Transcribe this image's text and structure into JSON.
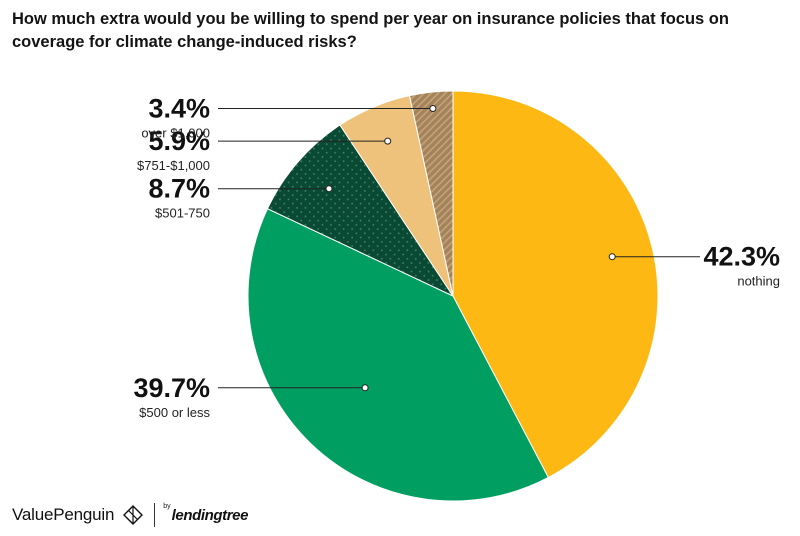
{
  "chart_data": {
    "type": "pie",
    "title": "How much extra would you be willing to spend per year on insurance policies that focus on coverage for climate change-induced risks?",
    "slices": [
      {
        "label": "nothing",
        "value": 42.3,
        "display": "42.3%",
        "color": "#FDB813",
        "pattern": "solid"
      },
      {
        "label": "$500 or less",
        "value": 39.7,
        "display": "39.7%",
        "color": "#009E60",
        "pattern": "solid"
      },
      {
        "label": "$501-750",
        "value": 8.7,
        "display": "8.7%",
        "color": "#0A4A34",
        "pattern": "dots"
      },
      {
        "label": "$751-$1,000",
        "value": 5.9,
        "display": "5.9%",
        "color": "#EEC27A",
        "pattern": "solid"
      },
      {
        "label": "over $1,000",
        "value": 3.4,
        "display": "3.4%",
        "color": "#A5835A",
        "pattern": "diagonal"
      }
    ],
    "start": "12 o'clock",
    "direction": "clockwise"
  },
  "branding": {
    "valuepenguin": "ValuePenguin",
    "by": "by",
    "lendingtree": "lendingtree"
  }
}
